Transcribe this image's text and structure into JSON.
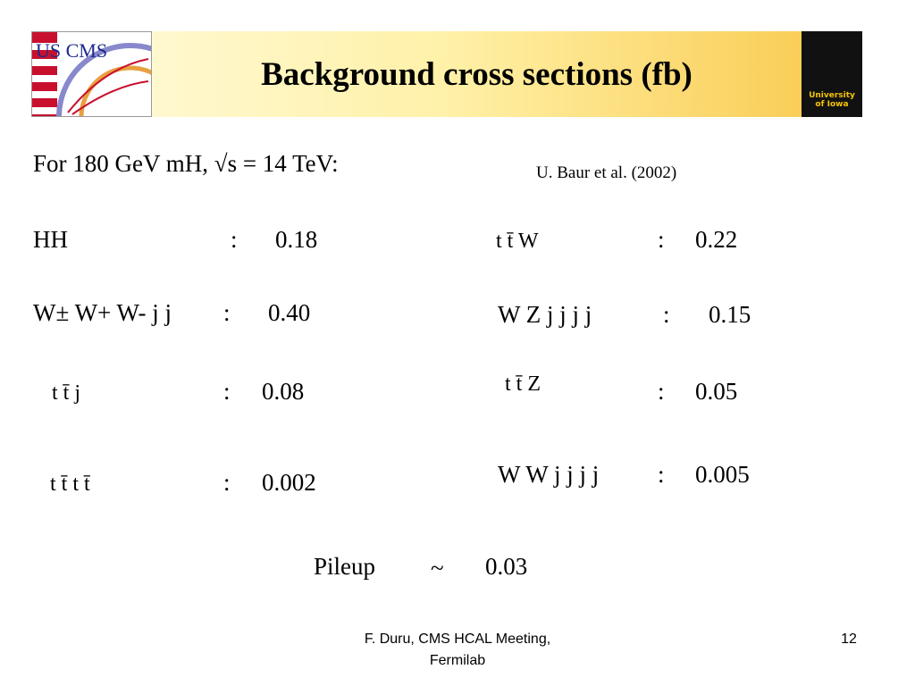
{
  "header": {
    "title": "Background cross sections (fb)",
    "logo_left": "US CMS",
    "logo_right": "University of Iowa"
  },
  "intro": "For 180 GeV mH, √s = 14 TeV:",
  "reference": "U. Baur et al. (2002)",
  "entries": [
    {
      "label": "HH",
      "separator": ":",
      "value": "0.18"
    },
    {
      "label": "W± W+ W- j j",
      "separator": ":",
      "value": "0.40"
    },
    {
      "label": "t t̄ j",
      "separator": ":",
      "value": "0.08"
    },
    {
      "label": "t t̄ t t̄",
      "separator": ":",
      "value": "0.002"
    },
    {
      "label": "t t̄ W",
      "separator": ":",
      "value": "0.22"
    },
    {
      "label": "W Z j j j j",
      "separator": ":",
      "value": "0.15"
    },
    {
      "label": "t t̄ Z",
      "separator": ":",
      "value": "0.05"
    },
    {
      "label": "W W j j j j",
      "separator": ":",
      "value": "0.005"
    }
  ],
  "pileup": {
    "label": "Pileup",
    "separator": "~",
    "value": "0.03"
  },
  "footer": {
    "author": "F. Duru, CMS HCAL Meeting,",
    "venue": "Fermilab",
    "page": "12"
  }
}
